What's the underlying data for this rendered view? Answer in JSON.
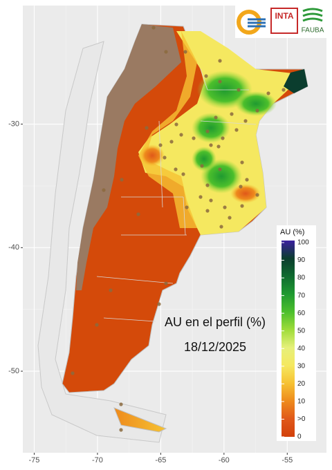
{
  "map": {
    "title": "AU en el perfil (%)",
    "date": "18/12/2025",
    "x_axis": {
      "lim": [
        -75.9,
        -51.9
      ],
      "ticks": [
        -75,
        -70,
        -65,
        -60,
        -55
      ]
    },
    "y_axis": {
      "lim": [
        -56.6,
        -20.4
      ],
      "ticks": [
        -30,
        -40,
        -50
      ]
    },
    "legend": {
      "title": "AU (%)",
      "labels": [
        "100",
        "90",
        "80",
        "70",
        "60",
        "50",
        "40",
        "30",
        "20",
        "10",
        ">0",
        "0"
      ],
      "colors": [
        "#3b1fa0",
        "#0b3d2e",
        "#0f6b2f",
        "#1f9a30",
        "#4cbf2c",
        "#9fdc3a",
        "#e6f07a",
        "#f5e860",
        "#f6c233",
        "#ee8a1c",
        "#e0581a",
        "#d2400a"
      ]
    }
  },
  "logos": {
    "inta": "INTA",
    "fauba": "FAUBA"
  }
}
